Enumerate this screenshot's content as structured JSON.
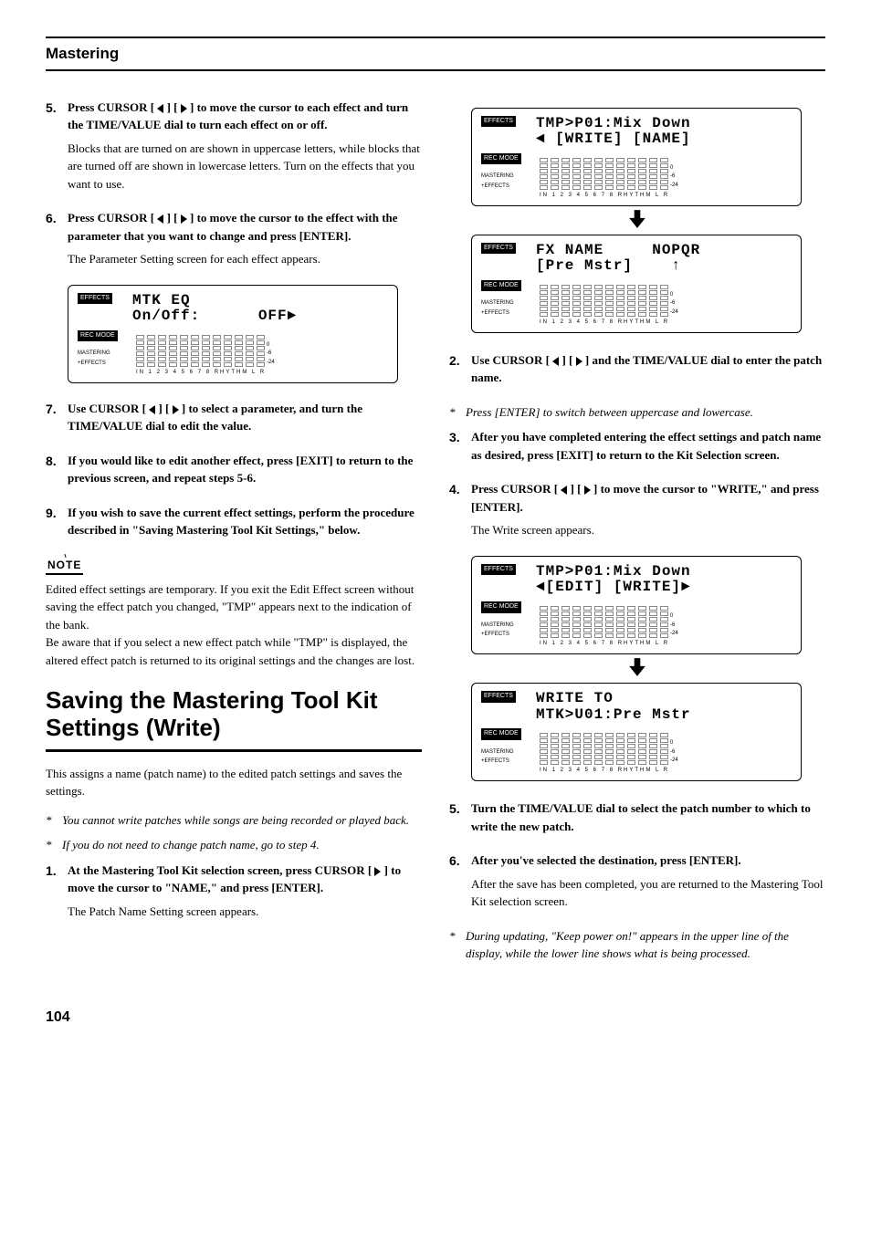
{
  "header": {
    "title": "Mastering"
  },
  "left": {
    "steps": [
      {
        "num": "5.",
        "title_pre": "Press CURSOR [ ",
        "title_mid": " ] [ ",
        "title_post": " ] to move the cursor to each effect and turn the TIME/VALUE dial to turn each effect on or off.",
        "desc": "Blocks that are turned on are shown in uppercase letters, while blocks that are turned off are shown in lowercase letters. Turn on the effects that you want to use."
      },
      {
        "num": "6.",
        "title_pre": "Press CURSOR [ ",
        "title_mid": " ] [ ",
        "title_post": " ] to move the cursor to the effect with the parameter that you want to change and press [ENTER].",
        "desc": "The Parameter Setting screen for each effect appears."
      }
    ],
    "lcd1": {
      "line1": "MTK EQ",
      "line2": "On/Off:      OFF",
      "labels_eff": "EFFECTS",
      "labels_rec": "REC MODE",
      "labels_mast": "MASTERING\n+EFFECTS",
      "foot": "IN   1  2  3  4  5  6  7  8 RHYTHM   L   R",
      "scale": [
        "0",
        "-6",
        "-24"
      ]
    },
    "steps2": [
      {
        "num": "7.",
        "title_pre": "Use CURSOR [ ",
        "title_mid": " ] [ ",
        "title_post": " ] to select a parameter, and turn the TIME/VALUE dial to edit the value."
      },
      {
        "num": "8.",
        "title": "If you would like to edit another effect, press [EXIT] to return to the previous screen, and repeat steps 5-6."
      },
      {
        "num": "9.",
        "title": "If you wish to save the current effect settings, perform the procedure described in \"Saving Mastering Tool Kit Settings,\" below."
      }
    ],
    "note_label": "NOTE",
    "note_text": "Edited effect settings are temporary. If you exit the Edit Effect screen without saving the effect patch you changed, \"TMP\" appears next to the indication of the bank.\nBe aware that if you select a new effect patch while \"TMP\" is displayed, the altered effect patch is returned to its original settings and the changes are lost.",
    "section_title": "Saving the Mastering Tool Kit Settings (Write)",
    "intro": "This assigns a name (patch name) to the edited patch settings and saves the settings.",
    "italics": [
      "You cannot write patches while songs are being recorded or played back.",
      "If you do not need to change patch name, go to step 4."
    ],
    "step1": {
      "num": "1.",
      "title_pre": "At the Mastering Tool Kit selection screen, press CURSOR [ ",
      "title_post": " ] to move the cursor to \"NAME,\" and press [ENTER].",
      "desc": "The Patch Name Setting screen appears."
    }
  },
  "right": {
    "lcd_a": {
      "line1": "TMP>P01:Mix Down",
      "line2": "◄ [WRITE] [NAME]"
    },
    "lcd_b": {
      "line1": "FX NAME     NOPQR",
      "line2": "[Pre Mstr]    ↑"
    },
    "steps": [
      {
        "num": "2.",
        "title_pre": "Use CURSOR [ ",
        "title_mid": " ] [ ",
        "title_post": " ] and the TIME/VALUE dial to enter the patch name."
      }
    ],
    "italic_a": "Press [ENTER] to switch between uppercase and lowercase.",
    "steps2": [
      {
        "num": "3.",
        "title": "After you have completed entering the effect settings and patch name as desired, press [EXIT] to return to the Kit Selection screen."
      },
      {
        "num": "4.",
        "title_pre": "Press CURSOR [ ",
        "title_mid": " ] [ ",
        "title_post": " ] to move the cursor to \"WRITE,\" and press [ENTER].",
        "desc": "The Write screen appears."
      }
    ],
    "lcd_c": {
      "line1": "TMP>P01:Mix Down",
      "line2": "◄[EDIT] [WRITE]►"
    },
    "lcd_d": {
      "line1": "WRITE TO",
      "line2": "MTK>U01:Pre Mstr"
    },
    "steps3": [
      {
        "num": "5.",
        "title": "Turn the TIME/VALUE dial to select the patch number to which to write the new patch."
      },
      {
        "num": "6.",
        "title": "After you've selected the destination, press [ENTER].",
        "desc": "After the save has been completed, you are returned to the Mastering Tool Kit selection screen."
      }
    ],
    "italic_b": "During updating, \"Keep power on!\" appears in the upper line of the display, while the lower line shows what is being processed."
  },
  "lcd_common": {
    "labels_eff": "EFFECTS",
    "labels_rec": "REC MODE",
    "labels_mast1": "MASTERING",
    "labels_mast2": "+EFFECTS",
    "foot": "IN   1  2  3  4  5  6  7  8 RHYTHM   L   R",
    "scale": [
      "0",
      "-6",
      "-24"
    ]
  },
  "page_num": "104"
}
